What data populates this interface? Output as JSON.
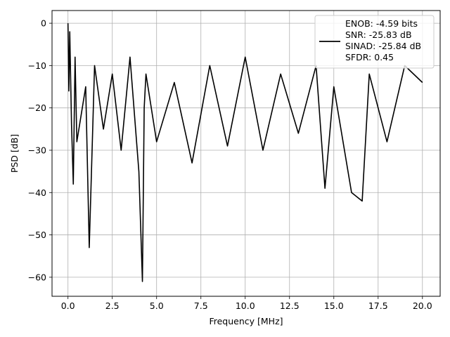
{
  "chart_data": {
    "type": "line",
    "title": "",
    "xlabel": "Frequency [MHz]",
    "ylabel": "PSD [dB]",
    "xlim": [
      -0.9,
      21.0
    ],
    "ylim": [
      -64.5,
      3.0
    ],
    "xticks": [
      0.0,
      2.5,
      5.0,
      7.5,
      10.0,
      12.5,
      15.0,
      17.5,
      20.0
    ],
    "xtick_labels": [
      "0.0",
      "2.5",
      "5.0",
      "7.5",
      "10.0",
      "12.5",
      "15.0",
      "17.5",
      "20.0"
    ],
    "yticks": [
      0,
      -10,
      -20,
      -30,
      -40,
      -50,
      -60
    ],
    "ytick_labels": [
      "0",
      "−10",
      "−20",
      "−30",
      "−40",
      "−50",
      "−60"
    ],
    "grid": true,
    "legend_position": "top-right",
    "series": [
      {
        "name": "ENOB: -4.59 bits\nSNR: -25.83 dB\nSINAD: -25.84 dB\nSFDR: 0.45",
        "color": "#000000",
        "x": [
          0.0,
          0.05,
          0.1,
          0.2,
          0.3,
          0.4,
          0.5,
          1.0,
          1.2,
          1.5,
          2.0,
          2.5,
          3.0,
          3.5,
          4.0,
          4.2,
          4.3,
          4.4,
          5.0,
          6.0,
          7.0,
          8.0,
          9.0,
          10.0,
          11.0,
          12.0,
          13.0,
          14.0,
          14.5,
          15.0,
          16.0,
          16.6,
          17.0,
          18.0,
          19.0,
          20.0
        ],
        "y": [
          0.0,
          -16.0,
          -2.0,
          -24.0,
          -38.0,
          -8.0,
          -28.0,
          -15.0,
          -53.0,
          -10.0,
          -25.0,
          -12.0,
          -30.0,
          -8.0,
          -35.0,
          -61.0,
          -20.0,
          -12.0,
          -28.0,
          -14.0,
          -33.0,
          -10.0,
          -29.0,
          -8.0,
          -30.0,
          -12.0,
          -26.0,
          -10.0,
          -39.0,
          -15.0,
          -40.0,
          -42.0,
          -12.0,
          -28.0,
          -10.0,
          -14.0
        ]
      }
    ],
    "legend_lines": [
      "ENOB: -4.59 bits",
      "SNR: -25.83 dB",
      "SINAD: -25.84 dB",
      "SFDR: 0.45"
    ]
  }
}
